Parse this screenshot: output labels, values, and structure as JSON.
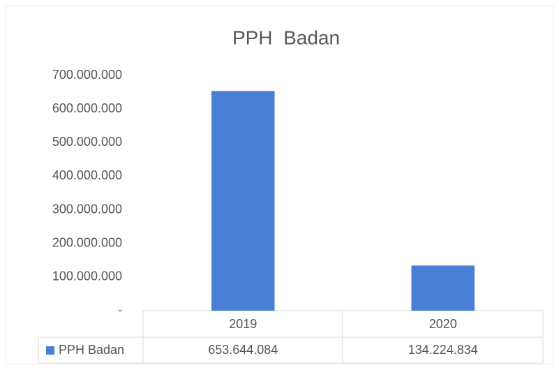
{
  "chart_data": {
    "type": "bar",
    "title": "PPH  Badan",
    "categories": [
      "2019",
      "2020"
    ],
    "series": [
      {
        "name": "PPH Badan",
        "color": "#4a7fd6",
        "values": [
          653644084,
          134224834
        ],
        "value_labels": [
          "653.644.084",
          "134.224.834"
        ]
      }
    ],
    "ylim": [
      0,
      700000000
    ],
    "yticks": [
      {
        "value": 0,
        "label": "-"
      },
      {
        "value": 100000000,
        "label": "100.000.000"
      },
      {
        "value": 200000000,
        "label": "200.000.000"
      },
      {
        "value": 300000000,
        "label": "300.000.000"
      },
      {
        "value": 400000000,
        "label": "400.000.000"
      },
      {
        "value": 500000000,
        "label": "500.000.000"
      },
      {
        "value": 600000000,
        "label": "600.000.000"
      },
      {
        "value": 700000000,
        "label": "700.000.000"
      }
    ],
    "grid": false
  }
}
